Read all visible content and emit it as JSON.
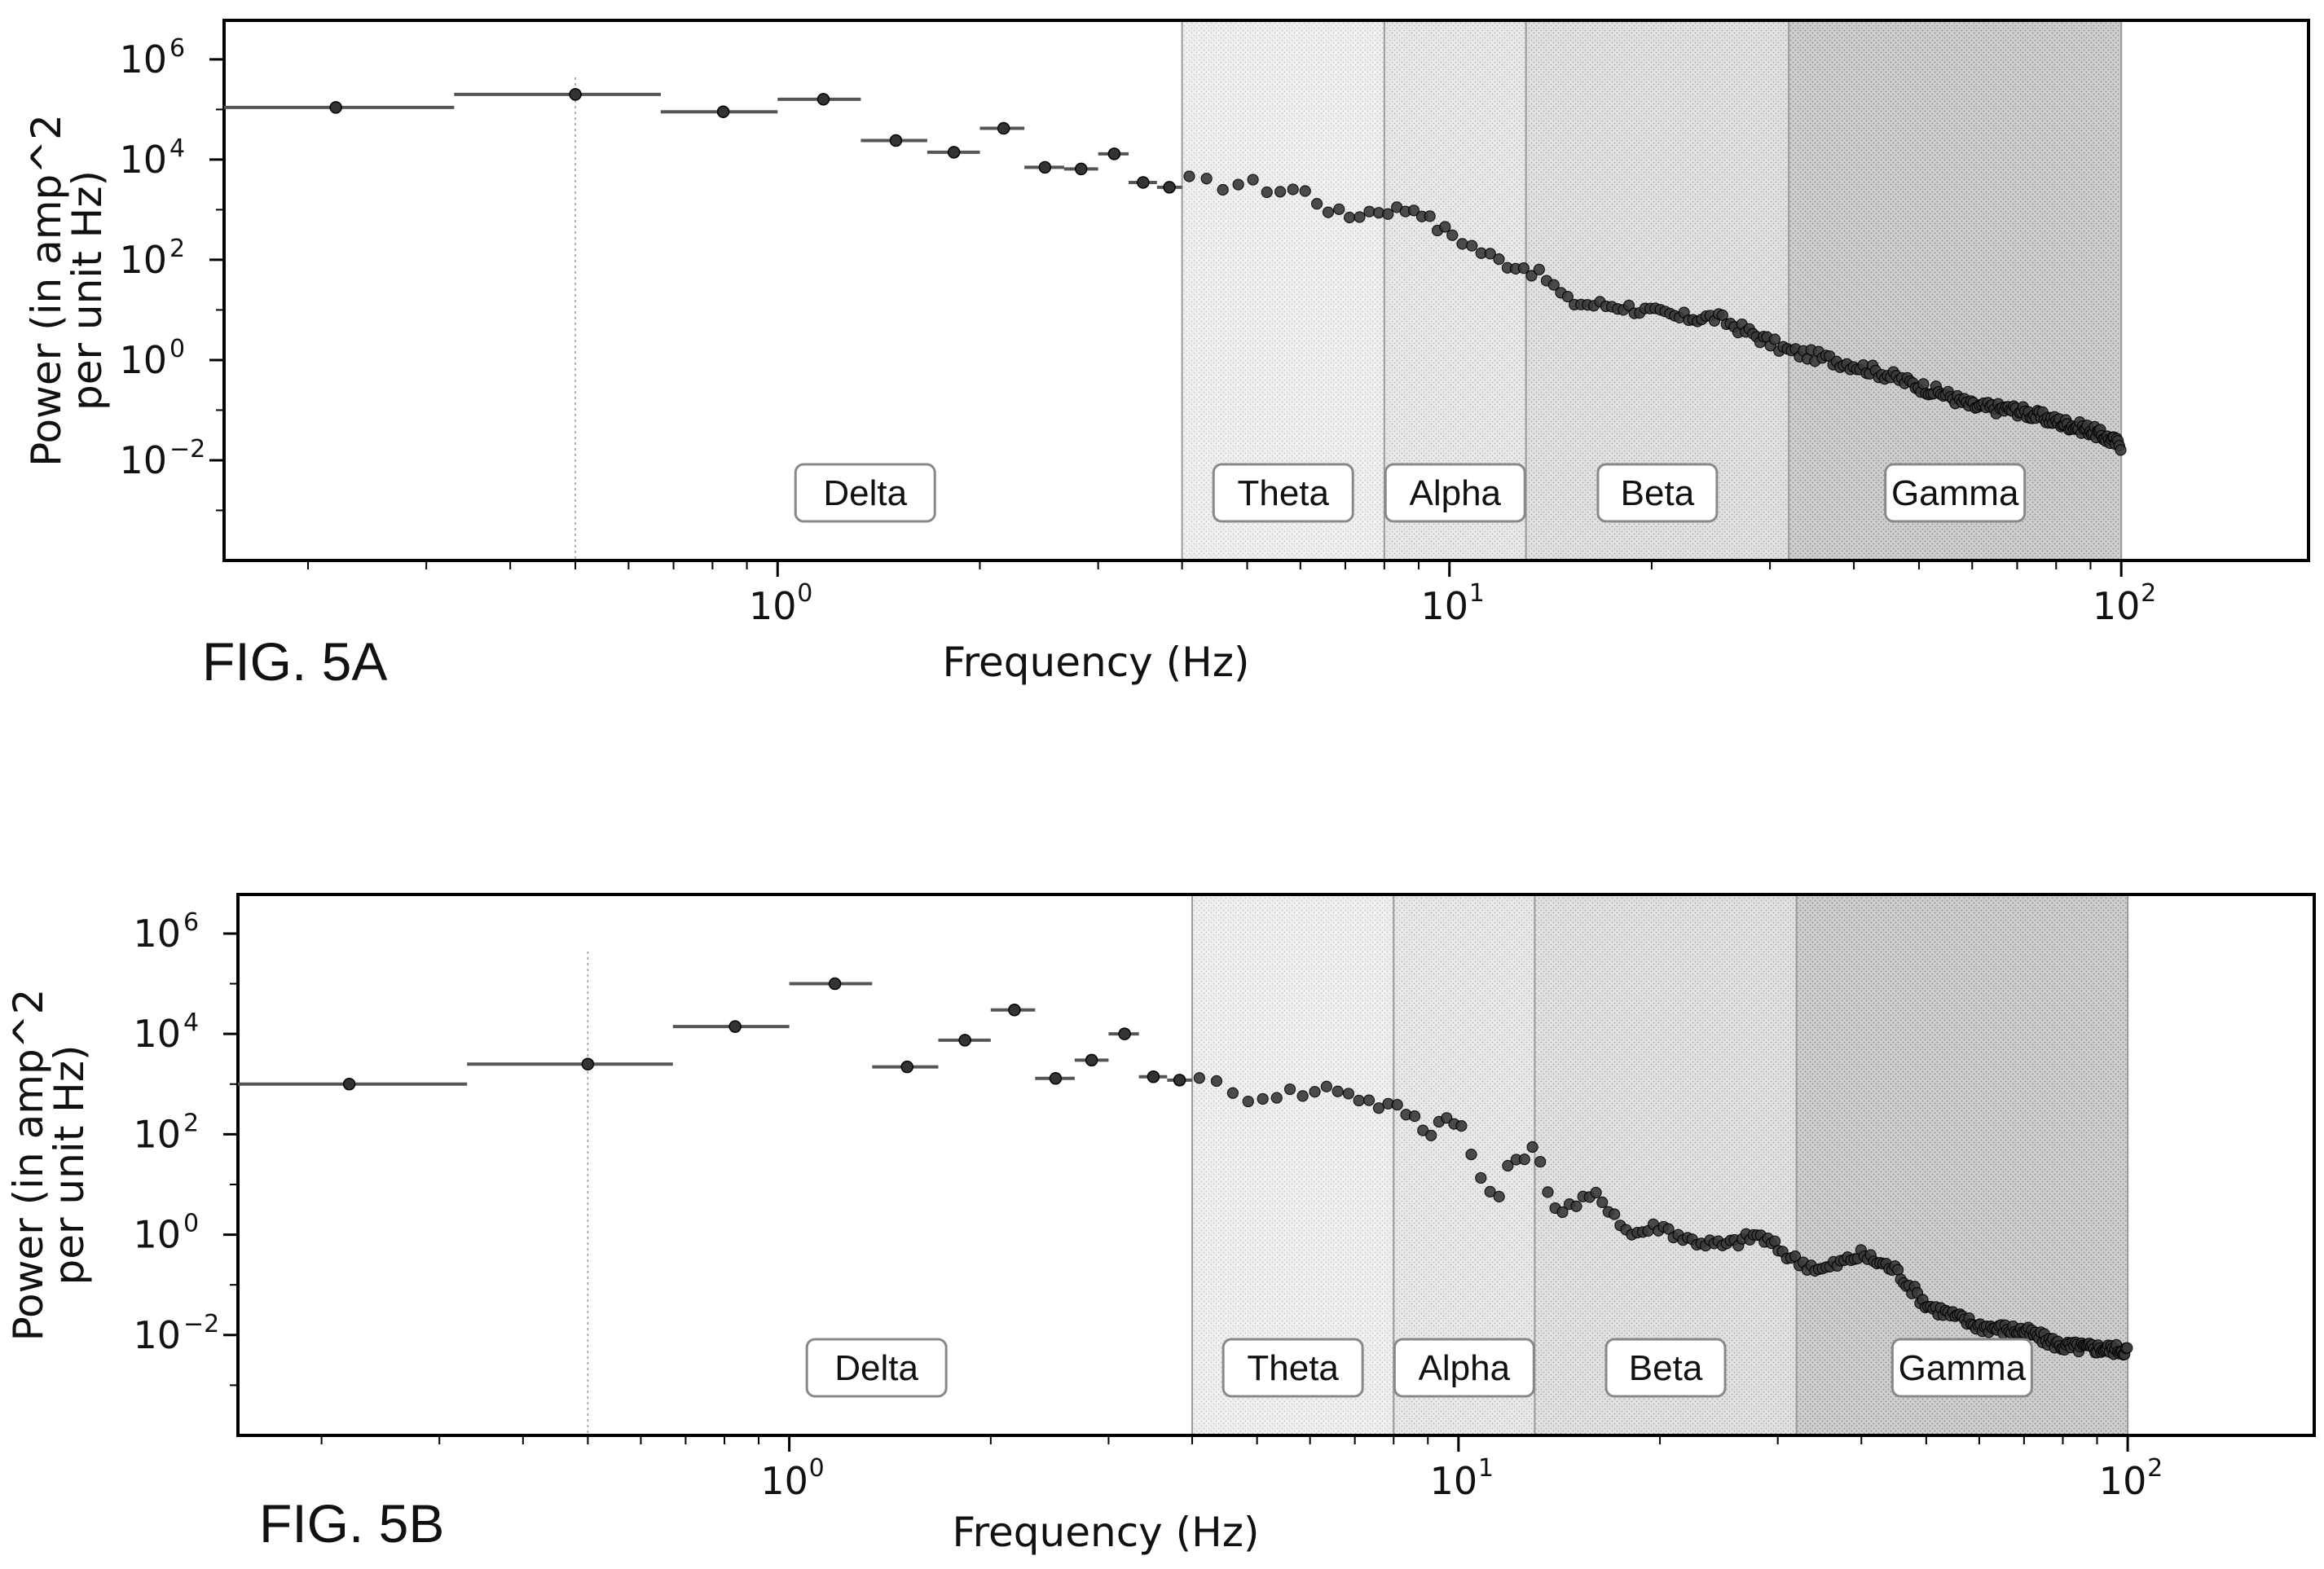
{
  "figure_labels": [
    "FIG. 5A",
    "FIG. 5B"
  ],
  "chart_data": [
    {
      "type": "scatter",
      "figure_label": "FIG. 5A",
      "xlabel": "Frequency (Hz)",
      "ylabel_lines": [
        "Power (in amp^2",
        "per unit Hz)"
      ],
      "xscale": "log",
      "yscale": "log",
      "xlim": [
        0.15,
        190
      ],
      "ylim": [
        0.0001,
        6000000
      ],
      "x_ticks": [
        {
          "label": "10",
          "exp": "0",
          "value": 1
        },
        {
          "label": "10",
          "exp": "1",
          "value": 10
        },
        {
          "label": "10",
          "exp": "2",
          "value": 100
        }
      ],
      "y_ticks": [
        {
          "label": "10",
          "exp": "6",
          "value": 1000000
        },
        {
          "label": "10",
          "exp": "4",
          "value": 10000
        },
        {
          "label": "10",
          "exp": "2",
          "value": 100
        },
        {
          "label": "10",
          "exp": "0",
          "value": 1
        },
        {
          "label": "10",
          "exp": "−2",
          "value": 0.01
        }
      ],
      "reference_line_x": 0.5,
      "bands": [
        {
          "name": "Delta",
          "start": 0.15,
          "end": 4
        },
        {
          "name": "Theta",
          "start": 4,
          "end": 8
        },
        {
          "name": "Alpha",
          "start": 8,
          "end": 13
        },
        {
          "name": "Beta",
          "start": 13,
          "end": 32
        },
        {
          "name": "Gamma",
          "start": 32,
          "end": 100
        }
      ],
      "binned_points": [
        {
          "x": 0.22,
          "x_low": 0.15,
          "x_high": 0.33,
          "y": 110000
        },
        {
          "x": 0.5,
          "x_low": 0.33,
          "x_high": 0.67,
          "y": 200000
        },
        {
          "x": 0.83,
          "x_low": 0.67,
          "x_high": 1.0,
          "y": 90000
        },
        {
          "x": 1.17,
          "x_low": 1.0,
          "x_high": 1.33,
          "y": 160000
        },
        {
          "x": 1.5,
          "x_low": 1.33,
          "x_high": 1.67,
          "y": 24000
        },
        {
          "x": 1.83,
          "x_low": 1.67,
          "x_high": 2.0,
          "y": 14000
        },
        {
          "x": 2.17,
          "x_low": 2.0,
          "x_high": 2.33,
          "y": 42000
        },
        {
          "x": 2.5,
          "x_low": 2.33,
          "x_high": 2.67,
          "y": 7000
        },
        {
          "x": 2.83,
          "x_low": 2.67,
          "x_high": 3.0,
          "y": 6500
        },
        {
          "x": 3.17,
          "x_low": 3.0,
          "x_high": 3.33,
          "y": 13000
        },
        {
          "x": 3.5,
          "x_low": 3.33,
          "x_high": 3.67,
          "y": 3500
        },
        {
          "x": 3.83,
          "x_low": 3.67,
          "x_high": 4.0,
          "y": 2800
        }
      ],
      "spectrum_anchors": [
        [
          4.2,
          3800
        ],
        [
          4.5,
          3000
        ],
        [
          5.0,
          3500
        ],
        [
          5.5,
          2400
        ],
        [
          6.0,
          2600
        ],
        [
          6.5,
          1200
        ],
        [
          7.0,
          700
        ],
        [
          7.5,
          900
        ],
        [
          8.0,
          1000
        ],
        [
          8.5,
          1000
        ],
        [
          9.0,
          1100
        ],
        [
          9.5,
          480
        ],
        [
          10.0,
          350
        ],
        [
          11.0,
          160
        ],
        [
          12.0,
          90
        ],
        [
          13.0,
          70
        ],
        [
          14.0,
          40
        ],
        [
          15.0,
          15
        ],
        [
          16.0,
          13
        ],
        [
          18.0,
          12
        ],
        [
          20.0,
          9
        ],
        [
          22.0,
          7
        ],
        [
          25.0,
          7
        ],
        [
          28.0,
          3.5
        ],
        [
          32.0,
          1.5
        ],
        [
          35.0,
          1.2
        ],
        [
          40.0,
          0.8
        ],
        [
          45.0,
          0.5
        ],
        [
          50.0,
          0.3
        ],
        [
          55.0,
          0.2
        ],
        [
          60.0,
          0.12
        ],
        [
          70.0,
          0.1
        ],
        [
          80.0,
          0.06
        ],
        [
          90.0,
          0.04
        ],
        [
          100.0,
          0.02
        ]
      ]
    },
    {
      "type": "scatter",
      "figure_label": "FIG. 5B",
      "xlabel": "Frequency (Hz)",
      "ylabel_lines": [
        "Power (in amp^2",
        "per unit Hz)"
      ],
      "xscale": "log",
      "yscale": "log",
      "xlim": [
        0.15,
        190
      ],
      "ylim": [
        0.0001,
        6000000
      ],
      "x_ticks": [
        {
          "label": "10",
          "exp": "0",
          "value": 1
        },
        {
          "label": "10",
          "exp": "1",
          "value": 10
        },
        {
          "label": "10",
          "exp": "2",
          "value": 100
        }
      ],
      "y_ticks": [
        {
          "label": "10",
          "exp": "6",
          "value": 1000000
        },
        {
          "label": "10",
          "exp": "4",
          "value": 10000
        },
        {
          "label": "10",
          "exp": "2",
          "value": 100
        },
        {
          "label": "10",
          "exp": "0",
          "value": 1
        },
        {
          "label": "10",
          "exp": "−2",
          "value": 0.01
        }
      ],
      "reference_line_x": 0.5,
      "bands": [
        {
          "name": "Delta",
          "start": 0.15,
          "end": 4
        },
        {
          "name": "Theta",
          "start": 4,
          "end": 8
        },
        {
          "name": "Alpha",
          "start": 8,
          "end": 13
        },
        {
          "name": "Beta",
          "start": 13,
          "end": 32
        },
        {
          "name": "Gamma",
          "start": 32,
          "end": 100
        }
      ],
      "binned_points": [
        {
          "x": 0.22,
          "x_low": 0.15,
          "x_high": 0.33,
          "y": 1000
        },
        {
          "x": 0.5,
          "x_low": 0.33,
          "x_high": 0.67,
          "y": 2500
        },
        {
          "x": 0.83,
          "x_low": 0.67,
          "x_high": 1.0,
          "y": 14000
        },
        {
          "x": 1.17,
          "x_low": 1.0,
          "x_high": 1.33,
          "y": 100000
        },
        {
          "x": 1.5,
          "x_low": 1.33,
          "x_high": 1.67,
          "y": 2200
        },
        {
          "x": 1.83,
          "x_low": 1.67,
          "x_high": 2.0,
          "y": 7500
        },
        {
          "x": 2.17,
          "x_low": 2.0,
          "x_high": 2.33,
          "y": 30000
        },
        {
          "x": 2.5,
          "x_low": 2.33,
          "x_high": 2.67,
          "y": 1300
        },
        {
          "x": 2.83,
          "x_low": 2.67,
          "x_high": 3.0,
          "y": 3000
        },
        {
          "x": 3.17,
          "x_low": 3.0,
          "x_high": 3.33,
          "y": 10000
        },
        {
          "x": 3.5,
          "x_low": 3.33,
          "x_high": 3.67,
          "y": 1400
        },
        {
          "x": 3.83,
          "x_low": 3.67,
          "x_high": 4.0,
          "y": 1200
        }
      ],
      "spectrum_anchors": [
        [
          4.2,
          1600
        ],
        [
          4.5,
          600
        ],
        [
          5.0,
          550
        ],
        [
          5.5,
          700
        ],
        [
          6.0,
          650
        ],
        [
          6.5,
          900
        ],
        [
          7.0,
          600
        ],
        [
          7.5,
          400
        ],
        [
          8.0,
          350
        ],
        [
          8.5,
          250
        ],
        [
          9.0,
          100
        ],
        [
          9.5,
          220
        ],
        [
          10.0,
          200
        ],
        [
          10.5,
          30
        ],
        [
          11.0,
          8
        ],
        [
          11.5,
          6
        ],
        [
          12.0,
          30
        ],
        [
          13.0,
          50
        ],
        [
          14.0,
          3
        ],
        [
          15.0,
          4
        ],
        [
          16.0,
          6
        ],
        [
          17.0,
          3
        ],
        [
          18.0,
          1
        ],
        [
          20.0,
          1.5
        ],
        [
          22.0,
          0.8
        ],
        [
          25.0,
          0.6
        ],
        [
          28.0,
          1
        ],
        [
          32.0,
          0.3
        ],
        [
          35.0,
          0.2
        ],
        [
          40.0,
          0.4
        ],
        [
          45.0,
          0.2
        ],
        [
          50.0,
          0.04
        ],
        [
          60.0,
          0.015
        ],
        [
          70.0,
          0.012
        ],
        [
          80.0,
          0.006
        ],
        [
          100.0,
          0.005
        ]
      ]
    }
  ]
}
